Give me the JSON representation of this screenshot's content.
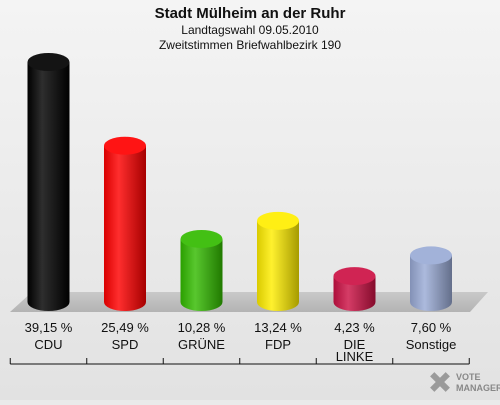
{
  "chart_data": {
    "type": "bar",
    "title": "Stadt Mülheim an der Ruhr",
    "subtitle_1": "Landtagswahl 09.05.2010",
    "subtitle_2": "Zweitstimmen Briefwahlbezirk 190",
    "categories": [
      "CDU",
      "SPD",
      "GRÜNE",
      "FDP",
      "DIE LINKE",
      "Sonstige"
    ],
    "category_lines": [
      [
        "CDU"
      ],
      [
        "SPD"
      ],
      [
        "GRÜNE"
      ],
      [
        "FDP"
      ],
      [
        "DIE",
        "LINKE"
      ],
      [
        "Sonstige"
      ]
    ],
    "values": [
      39.15,
      25.49,
      10.28,
      13.24,
      4.23,
      7.6
    ],
    "value_labels": [
      "39,15 %",
      "25,49 %",
      "10,28 %",
      "13,24 %",
      "4,23 %",
      "7,60 %"
    ],
    "colors": [
      "#000000",
      "#ff0000",
      "#33bb00",
      "#ffee00",
      "#cc1144",
      "#9aabd6"
    ],
    "ylim": [
      0,
      39.15
    ]
  },
  "logo": {
    "line1": "VOTE",
    "line2": "MANAGER"
  }
}
